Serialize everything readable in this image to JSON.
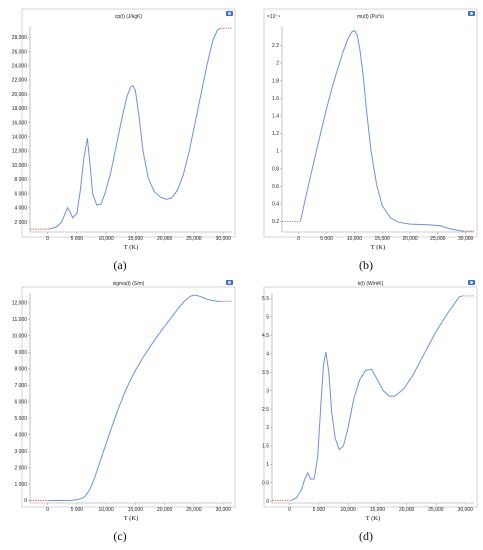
{
  "chart_data": [
    {
      "type": "line",
      "title": "cp(t) (J/kgK)",
      "caption": "(a)",
      "xlabel": "T (K)",
      "x_ticks": [
        0,
        5000,
        10000,
        15000,
        20000,
        25000,
        30000
      ],
      "x_tick_labels": [
        "0",
        "5 000",
        "10,000",
        "15,000",
        "20,000",
        "25,000",
        "30,000"
      ],
      "xlim": [
        -3000,
        31500
      ],
      "y_ticks": [
        2000,
        4000,
        6000,
        8000,
        10000,
        12000,
        14000,
        16000,
        18000,
        20000,
        22000,
        24000,
        26000,
        28000
      ],
      "y_tick_labels": [
        "2 000",
        "4 000",
        "6 000",
        "8 000",
        "10,000",
        "12,000",
        "14,000",
        "16,000",
        "18,000",
        "20,000",
        "22,000",
        "24,000",
        "26,000",
        "28,000"
      ],
      "ylim": [
        600,
        29600
      ],
      "series": [
        {
          "x": [
            300,
            1500,
            2400,
            3000,
            3400,
            3800,
            4300,
            5000,
            5600,
            6200,
            6800,
            7200,
            7700,
            8400,
            9100,
            9800,
            10800,
            11800,
            12800,
            13600,
            14200,
            14600,
            15000,
            15600,
            16300,
            17200,
            18200,
            19300,
            20300,
            21200,
            22200,
            23200,
            24200,
            25200,
            26200,
            27200,
            28200,
            29000,
            29500
          ],
          "y": [
            1000,
            1300,
            2000,
            3200,
            4000,
            3500,
            2600,
            3200,
            6500,
            11000,
            13800,
            10500,
            6000,
            4400,
            4500,
            6000,
            9000,
            13000,
            17000,
            19800,
            21000,
            21200,
            20500,
            17000,
            12000,
            8200,
            6300,
            5500,
            5200,
            5400,
            6500,
            8700,
            12000,
            16000,
            20000,
            24000,
            27500,
            29000,
            29300
          ]
        }
      ],
      "extrapolation": {
        "left": {
          "x": [
            -3000,
            300
          ],
          "y": [
            1000,
            1000
          ]
        },
        "right": {
          "x": [
            29500,
            31500
          ],
          "y": [
            29300,
            29300
          ]
        }
      }
    },
    {
      "type": "line",
      "title": "mu(t) (Pa*s)",
      "caption": "(b)",
      "xlabel": "T (K)",
      "multiplier": "×10⁻⁴",
      "x_ticks": [
        0,
        5000,
        10000,
        15000,
        20000,
        25000,
        30000
      ],
      "x_tick_labels": [
        "0",
        "5 000",
        "10,000",
        "15,000",
        "20,000",
        "25,000",
        "30,000"
      ],
      "xlim": [
        -3000,
        31500
      ],
      "y_ticks": [
        0.2,
        0.4,
        0.6,
        0.8,
        1,
        1.2,
        1.4,
        1.6,
        1.8,
        2,
        2.2
      ],
      "y_tick_labels": [
        "0.2",
        "0.4",
        "0.6",
        "0.8",
        "1",
        "1.2",
        "1.4",
        "1.6",
        "1.8",
        "2",
        "2.2"
      ],
      "ylim": [
        0.08,
        2.42
      ],
      "series": [
        {
          "x": [
            300,
            1000,
            2000,
            3000,
            4000,
            5000,
            6000,
            7000,
            8000,
            8800,
            9500,
            10000,
            10500,
            11000,
            11600,
            12200,
            13000,
            14000,
            15000,
            16500,
            18000,
            20000,
            22000,
            24000,
            25500,
            27000,
            28500,
            29500
          ],
          "y": [
            0.2,
            0.4,
            0.68,
            0.95,
            1.22,
            1.48,
            1.72,
            1.93,
            2.13,
            2.27,
            2.35,
            2.37,
            2.32,
            2.15,
            1.85,
            1.45,
            1.0,
            0.62,
            0.38,
            0.24,
            0.19,
            0.17,
            0.165,
            0.16,
            0.15,
            0.12,
            0.1,
            0.09
          ]
        }
      ],
      "extrapolation": {
        "left": {
          "x": [
            -3000,
            300
          ],
          "y": [
            0.2,
            0.2
          ]
        },
        "right": {
          "x": [
            29500,
            31500
          ],
          "y": [
            0.09,
            0.09
          ]
        }
      }
    },
    {
      "type": "line",
      "title": "sigma(t) (S/m)",
      "caption": "(c)",
      "xlabel": "T (K)",
      "x_ticks": [
        0,
        5000,
        10000,
        15000,
        20000,
        25000,
        30000
      ],
      "x_tick_labels": [
        "0",
        "5 000",
        "10,000",
        "15,000",
        "20,000",
        "25,000",
        "30,000"
      ],
      "xlim": [
        -3000,
        31500
      ],
      "y_ticks": [
        0,
        1000,
        2000,
        3000,
        4000,
        5000,
        6000,
        7000,
        8000,
        9000,
        10000,
        11000,
        12000
      ],
      "y_tick_labels": [
        "0",
        "1 000",
        "2 000",
        "3 000",
        "4 000",
        "5 000",
        "6 000",
        "7 000",
        "8 000",
        "9 000",
        "10,000",
        "11,000",
        "12,000"
      ],
      "ylim": [
        -150,
        12600
      ],
      "series": [
        {
          "x": [
            300,
            2000,
            4000,
            5000,
            6000,
            6500,
            7000,
            7500,
            8000,
            9000,
            10000,
            11000,
            12000,
            13000,
            14000,
            15000,
            16500,
            18000,
            19500,
            21000,
            22500,
            23500,
            24500,
            25200,
            26000,
            27000,
            28000,
            29000,
            29500
          ],
          "y": [
            0,
            0,
            10,
            50,
            150,
            300,
            550,
            900,
            1350,
            2400,
            3450,
            4500,
            5500,
            6400,
            7200,
            7900,
            8800,
            9600,
            10350,
            11050,
            11750,
            12150,
            12420,
            12480,
            12400,
            12250,
            12150,
            12100,
            12100
          ]
        }
      ],
      "extrapolation": {
        "left": {
          "x": [
            -3000,
            300
          ],
          "y": [
            0,
            0
          ]
        },
        "right": {
          "x": [
            29500,
            31500
          ],
          "y": [
            12100,
            12100
          ]
        }
      }
    },
    {
      "type": "line",
      "title": "k(t) (W/mK)",
      "caption": "(d)",
      "xlabel": "T (K)",
      "x_ticks": [
        0,
        5000,
        10000,
        15000,
        20000,
        25000,
        30000
      ],
      "x_tick_labels": [
        "0",
        "5 000",
        "10,000",
        "15,000",
        "20,000",
        "25,000",
        "30,000"
      ],
      "xlim": [
        -3000,
        31500
      ],
      "y_ticks": [
        0,
        0.5,
        1,
        1.5,
        2,
        2.5,
        3,
        3.5,
        4,
        4.5,
        5,
        5.5
      ],
      "y_tick_labels": [
        "0",
        "0.5",
        "1",
        "1.5",
        "2",
        "2.5",
        "3",
        "3.5",
        "4",
        "4.5",
        "5",
        "5.5"
      ],
      "ylim": [
        -0.05,
        5.65
      ],
      "series": [
        {
          "x": [
            300,
            1200,
            2000,
            2600,
            3100,
            3600,
            4200,
            4800,
            5300,
            5800,
            6200,
            6700,
            7200,
            7800,
            8500,
            9200,
            10000,
            11000,
            12000,
            13000,
            14000,
            15000,
            16000,
            17000,
            18000,
            19500,
            21000,
            23000,
            25000,
            27000,
            29000,
            29500
          ],
          "y": [
            0.02,
            0.1,
            0.3,
            0.6,
            0.77,
            0.6,
            0.6,
            1.2,
            2.5,
            3.7,
            4.05,
            3.5,
            2.4,
            1.7,
            1.4,
            1.5,
            2.0,
            2.8,
            3.3,
            3.55,
            3.58,
            3.3,
            3.0,
            2.85,
            2.85,
            3.05,
            3.4,
            4.0,
            4.6,
            5.1,
            5.55,
            5.57
          ]
        }
      ],
      "extrapolation": {
        "left": {
          "x": [
            -3000,
            300
          ],
          "y": [
            0.02,
            0.02
          ]
        },
        "right": {
          "x": [
            29500,
            31500
          ],
          "y": [
            5.57,
            5.57
          ]
        }
      }
    }
  ]
}
